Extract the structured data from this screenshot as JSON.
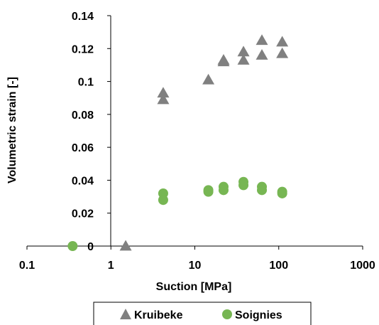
{
  "chart_data": {
    "type": "scatter",
    "x_scale": "log",
    "xlim": [
      0.1,
      1000
    ],
    "ylim": [
      0,
      0.14
    ],
    "xlabel": "Suction [MPa]",
    "ylabel": "Volumetric strain [-]",
    "x_ticks": [
      "0.1",
      "1",
      "10",
      "100",
      "1000"
    ],
    "y_ticks": [
      "0",
      "0.02",
      "0.04",
      "0.06",
      "0.08",
      "0.1",
      "0.12",
      "0.14"
    ],
    "grid": false,
    "legend_position": "bottom",
    "series": [
      {
        "name": "Kruibeke",
        "marker": "triangle",
        "color": "#808080",
        "points": [
          {
            "x": 1.5,
            "y": 0.0
          },
          {
            "x": 4.2,
            "y": 0.093
          },
          {
            "x": 4.2,
            "y": 0.089
          },
          {
            "x": 14.5,
            "y": 0.101
          },
          {
            "x": 22,
            "y": 0.113
          },
          {
            "x": 22,
            "y": 0.112
          },
          {
            "x": 38,
            "y": 0.118
          },
          {
            "x": 38,
            "y": 0.113
          },
          {
            "x": 63,
            "y": 0.125
          },
          {
            "x": 63,
            "y": 0.116
          },
          {
            "x": 110,
            "y": 0.124
          },
          {
            "x": 110,
            "y": 0.117
          }
        ]
      },
      {
        "name": "Soignies",
        "marker": "circle",
        "color": "#77B653",
        "points": [
          {
            "x": 0.35,
            "y": 0.0
          },
          {
            "x": 4.2,
            "y": 0.032
          },
          {
            "x": 4.2,
            "y": 0.028
          },
          {
            "x": 14.5,
            "y": 0.034
          },
          {
            "x": 14.5,
            "y": 0.033
          },
          {
            "x": 22,
            "y": 0.036
          },
          {
            "x": 22,
            "y": 0.034
          },
          {
            "x": 38,
            "y": 0.039
          },
          {
            "x": 38,
            "y": 0.037
          },
          {
            "x": 63,
            "y": 0.036
          },
          {
            "x": 63,
            "y": 0.034
          },
          {
            "x": 110,
            "y": 0.033
          },
          {
            "x": 110,
            "y": 0.032
          }
        ]
      }
    ]
  }
}
